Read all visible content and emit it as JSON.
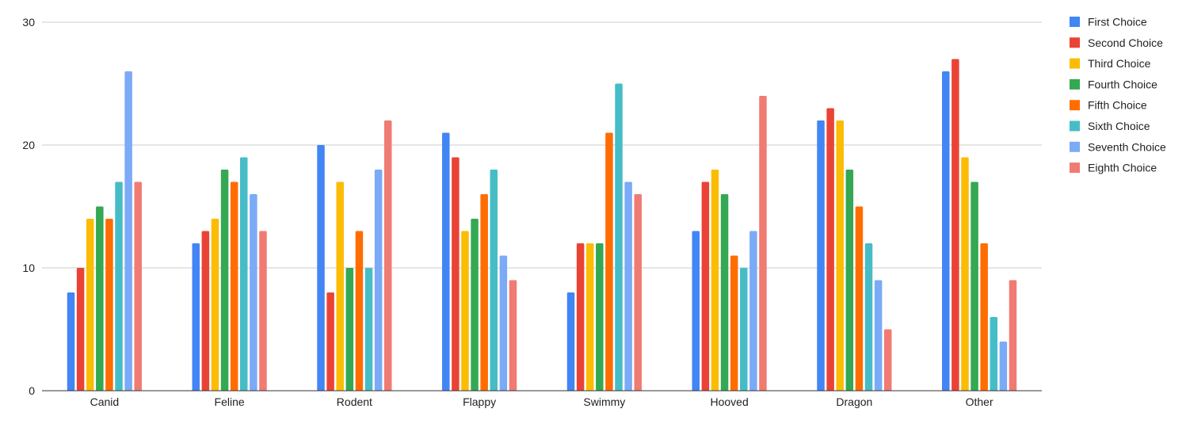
{
  "chart_data": {
    "type": "bar",
    "categories": [
      "Canid",
      "Feline",
      "Rodent",
      "Flappy",
      "Swimmy",
      "Hooved",
      "Dragon",
      "Other"
    ],
    "ylim": [
      0,
      30
    ],
    "yticks": [
      0,
      10,
      20,
      30
    ],
    "grid": true,
    "legend_position": "right",
    "series": [
      {
        "name": "First Choice",
        "color": "#4285F4",
        "values": [
          8,
          12,
          20,
          21,
          8,
          13,
          22,
          26
        ]
      },
      {
        "name": "Second Choice",
        "color": "#EA4335",
        "values": [
          10,
          13,
          8,
          19,
          12,
          17,
          23,
          27
        ]
      },
      {
        "name": "Third Choice",
        "color": "#FBBC04",
        "values": [
          14,
          14,
          17,
          13,
          12,
          18,
          22,
          19
        ]
      },
      {
        "name": "Fourth Choice",
        "color": "#34A853",
        "values": [
          15,
          18,
          10,
          14,
          12,
          16,
          18,
          17
        ]
      },
      {
        "name": "Fifth Choice",
        "color": "#FF6D01",
        "values": [
          14,
          17,
          13,
          16,
          21,
          11,
          15,
          12
        ]
      },
      {
        "name": "Sixth Choice",
        "color": "#46BDC6",
        "values": [
          17,
          19,
          10,
          18,
          25,
          10,
          12,
          6
        ]
      },
      {
        "name": "Seventh Choice",
        "color": "#7BAAF7",
        "values": [
          26,
          16,
          18,
          11,
          17,
          13,
          9,
          4
        ]
      },
      {
        "name": "Eighth Choice",
        "color": "#F07B72",
        "values": [
          17,
          13,
          22,
          9,
          16,
          24,
          5,
          9
        ]
      }
    ]
  }
}
